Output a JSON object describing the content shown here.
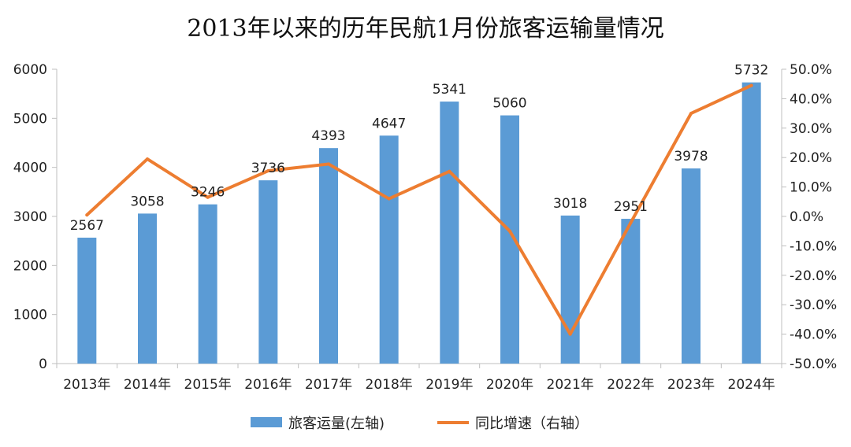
{
  "chart_data": {
    "type": "bar",
    "title": "2013年以来的历年民航1月份旅客运输量情况",
    "categories": [
      "2013年",
      "2014年",
      "2015年",
      "2016年",
      "2017年",
      "2018年",
      "2019年",
      "2020年",
      "2021年",
      "2022年",
      "2023年",
      "2024年"
    ],
    "series": [
      {
        "name": "旅客运量(左轴)",
        "type": "bar",
        "axis": "left",
        "values": [
          2567,
          3058,
          3246,
          3736,
          4393,
          4647,
          5341,
          5060,
          3018,
          2951,
          3978,
          5732
        ],
        "labels": [
          "2567",
          "3058",
          "3246",
          "3736",
          "4393",
          "4647",
          "5341",
          "5060",
          "3018",
          "2951",
          "3978",
          "5732"
        ],
        "color": "#5b9bd5"
      },
      {
        "name": "同比增速（右轴）",
        "type": "line",
        "axis": "right",
        "values": [
          0.5,
          19.5,
          6.5,
          15.5,
          17.8,
          6.0,
          15.3,
          -5.0,
          -40.0,
          -2.2,
          35.0,
          44.5
        ],
        "color": "#ed7d31"
      }
    ],
    "y_left": {
      "ylim": [
        0,
        6000
      ],
      "ticks": [
        "0",
        "1000",
        "2000",
        "3000",
        "4000",
        "5000",
        "6000"
      ]
    },
    "y_right": {
      "ylim": [
        -50,
        50
      ],
      "ticks": [
        "-50.0%",
        "-40.0%",
        "-30.0%",
        "-20.0%",
        "-10.0%",
        "0.0%",
        "10.0%",
        "20.0%",
        "30.0%",
        "40.0%",
        "50.0%"
      ]
    },
    "legend": {
      "position": "bottom"
    }
  }
}
